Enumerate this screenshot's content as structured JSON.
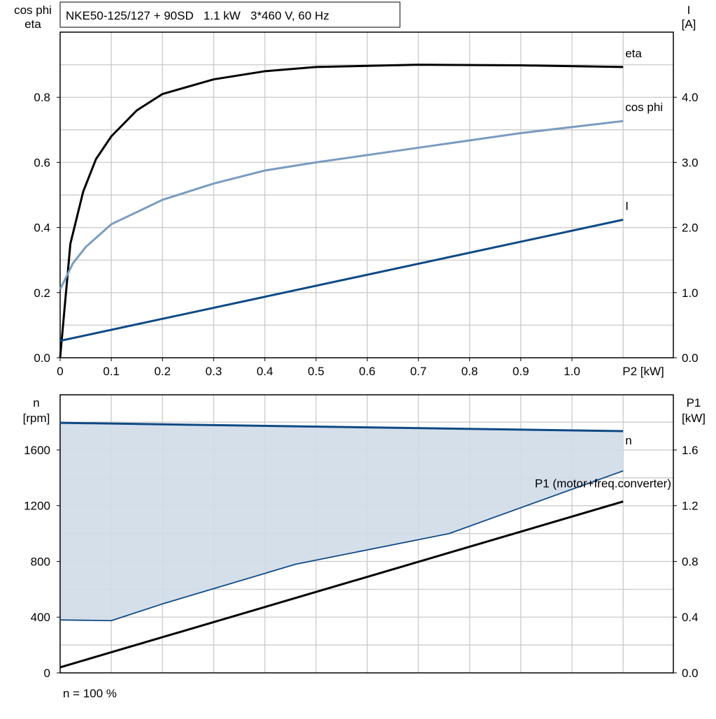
{
  "chart_data": [
    {
      "type": "line",
      "title": "NKE50-125/127 + 90SD   1.1 kW   3*460 V, 60 Hz",
      "xlabel": "P2 [kW]",
      "ylabel_left": [
        "cos phi",
        "eta"
      ],
      "ylabel_right": [
        "I",
        "[A]"
      ],
      "xlim": [
        0,
        1.1
      ],
      "ylim_left": [
        0,
        1.0
      ],
      "ylim_right": [
        0,
        5.0
      ],
      "x_ticks": [
        "0",
        "0.1",
        "0.2",
        "0.3",
        "0.4",
        "0.5",
        "0.6",
        "0.7",
        "0.8",
        "0.9",
        "1.0"
      ],
      "y_ticks_left": [
        "0.0",
        "0.2",
        "0.4",
        "0.6",
        "0.8"
      ],
      "y_ticks_right": [
        "0.0",
        "1.0",
        "2.0",
        "3.0",
        "4.0"
      ],
      "grid": true,
      "series": [
        {
          "name": "eta",
          "axis": "left",
          "color": "#000000",
          "x": [
            0,
            0.02,
            0.045,
            0.07,
            0.1,
            0.15,
            0.2,
            0.3,
            0.4,
            0.5,
            0.7,
            0.9,
            1.1
          ],
          "y": [
            0,
            0.35,
            0.51,
            0.61,
            0.68,
            0.76,
            0.81,
            0.855,
            0.88,
            0.893,
            0.9,
            0.898,
            0.893
          ]
        },
        {
          "name": "cos phi",
          "axis": "left",
          "color": "#7a9cbf",
          "x": [
            0,
            0.025,
            0.05,
            0.1,
            0.2,
            0.3,
            0.4,
            0.5,
            0.7,
            0.9,
            1.1
          ],
          "y": [
            0.21,
            0.29,
            0.34,
            0.41,
            0.485,
            0.535,
            0.575,
            0.6,
            0.645,
            0.69,
            0.727
          ]
        },
        {
          "name": "I",
          "axis": "right",
          "color": "#0e4a84",
          "x": [
            0,
            1.1
          ],
          "y": [
            0.26,
            2.12
          ]
        }
      ]
    },
    {
      "type": "area",
      "footer": "n = 100 %",
      "ylabel_left": [
        "n",
        "[rpm]"
      ],
      "ylabel_right": [
        "P1",
        "[kW]"
      ],
      "xlim": [
        0,
        1.1
      ],
      "ylim_left": [
        0,
        2000
      ],
      "ylim_right": [
        0,
        2.0
      ],
      "y_ticks_left": [
        "0",
        "400",
        "800",
        "1200",
        "1600"
      ],
      "y_ticks_right": [
        "0.0",
        "0.4",
        "0.8",
        "1.2",
        "1.6"
      ],
      "grid": true,
      "series": [
        {
          "name": "n",
          "axis": "left",
          "color": "#0e4a84",
          "x": [
            0,
            1.1
          ],
          "y": [
            1795,
            1735
          ]
        },
        {
          "axis": "left",
          "color": "#0e4a84",
          "role": "range-lower-bound",
          "x": [
            0,
            0.1,
            0.2,
            0.46,
            0.76,
            1.1
          ],
          "y": [
            380,
            375,
            495,
            780,
            1000,
            1450
          ]
        },
        {
          "name": "P1 (motor+freq.converter)",
          "axis": "right",
          "color": "#000000",
          "x": [
            0,
            1.1
          ],
          "y": [
            0.04,
            1.23
          ]
        }
      ],
      "fill_color": "#d0dce8"
    }
  ]
}
